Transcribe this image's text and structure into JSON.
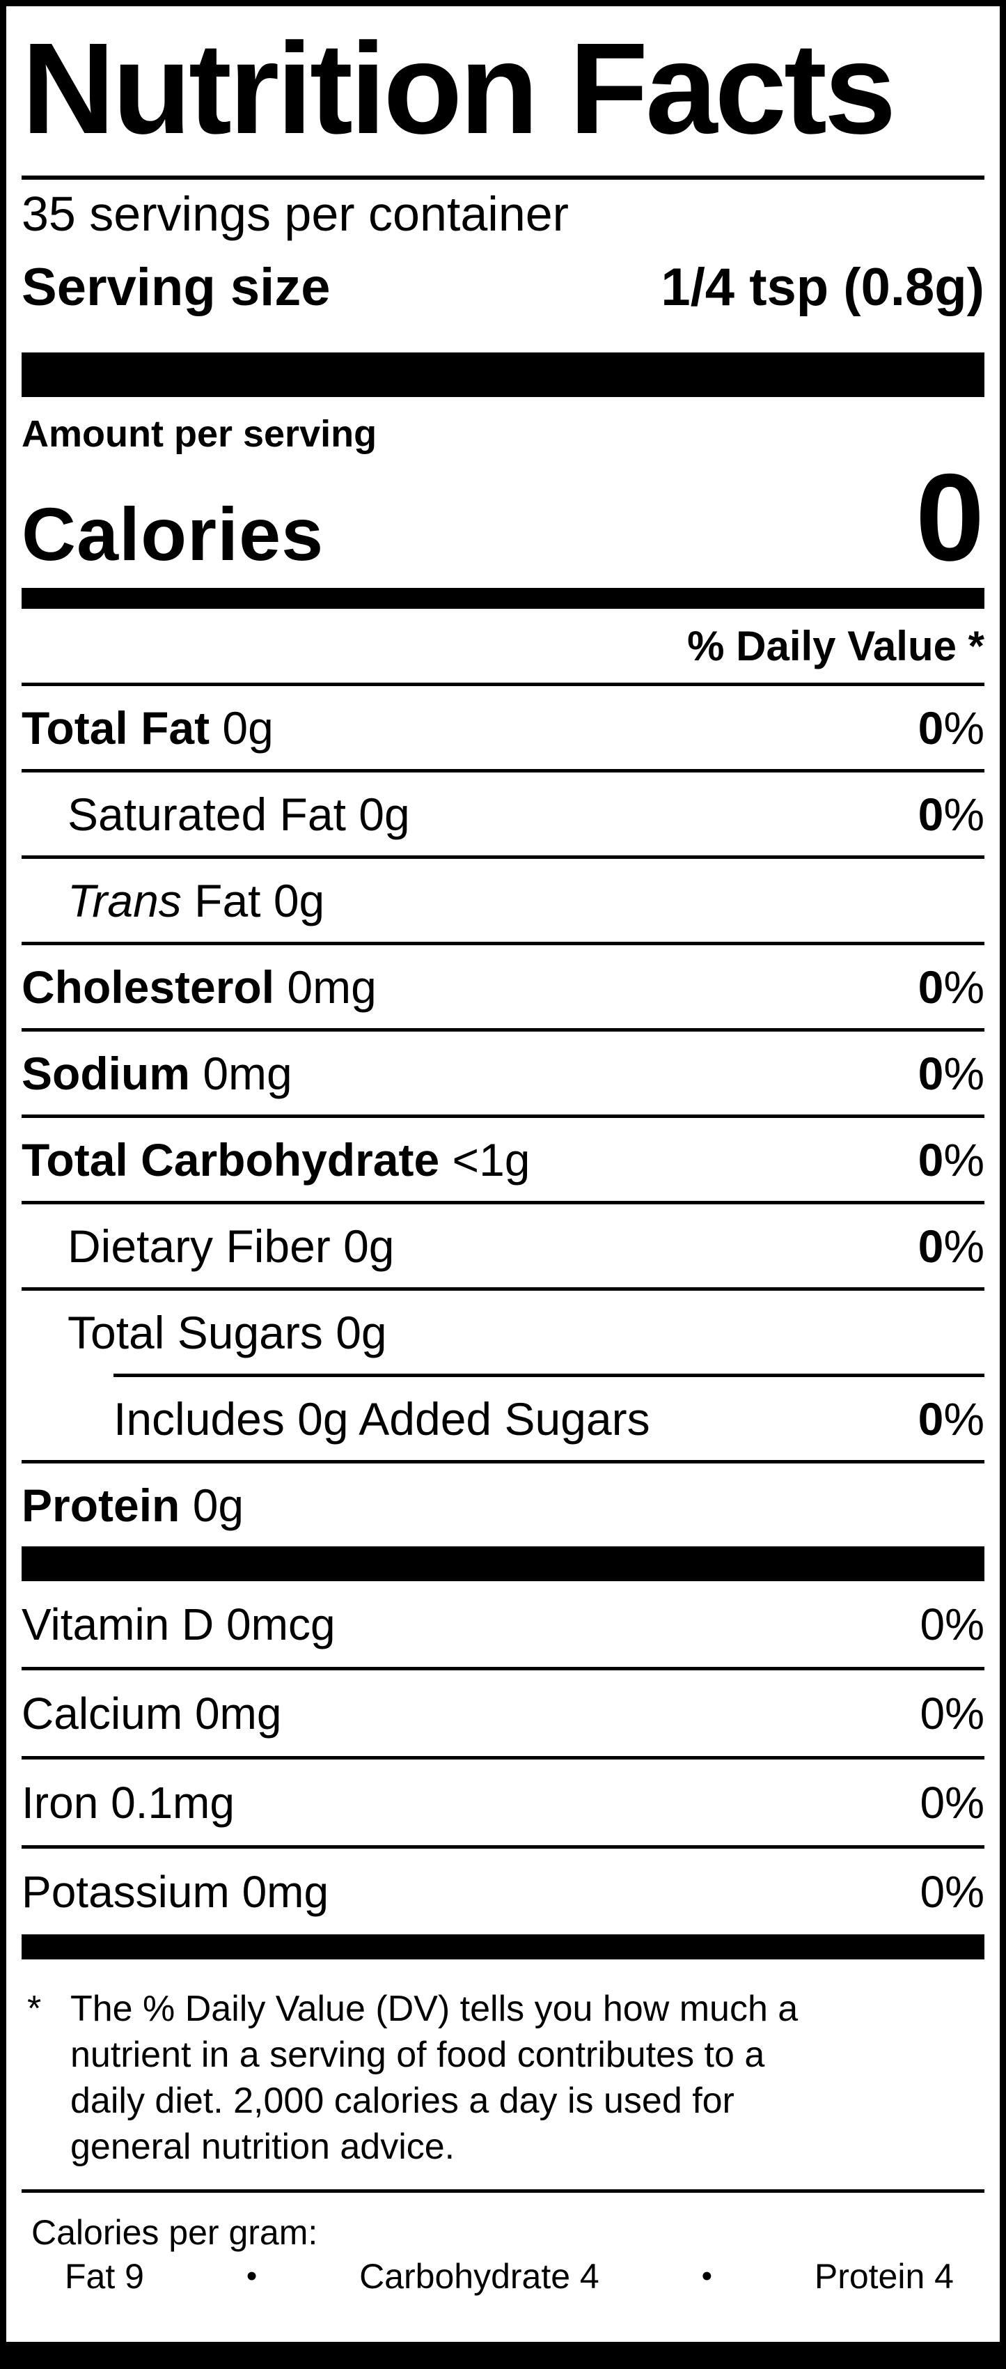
{
  "title": "Nutrition Facts",
  "servings_per_container": "35 servings per container",
  "serving_size": {
    "label": "Serving size",
    "value": "1/4 tsp (0.8g)"
  },
  "amount_per_serving": "Amount per serving",
  "calories": {
    "label": "Calories",
    "value": "0"
  },
  "daily_value_header": "% Daily Value *",
  "percent_sign": "%",
  "nutrients": [
    {
      "bold": "Total Fat",
      "text": " 0g",
      "dv": "0"
    },
    {
      "text": "Saturated Fat 0g",
      "dv": "0"
    },
    {
      "italic": "Trans",
      "text": " Fat 0g"
    },
    {
      "bold": "Cholesterol",
      "text": " 0mg",
      "dv": "0"
    },
    {
      "bold": "Sodium",
      "text": " 0mg",
      "dv": "0"
    },
    {
      "bold": "Total Carbohydrate",
      "text": " <1g",
      "dv": "0"
    },
    {
      "text": "Dietary Fiber 0g",
      "dv": "0"
    },
    {
      "text": "Total Sugars 0g"
    },
    {
      "text": "Includes 0g Added Sugars",
      "dv": "0"
    },
    {
      "bold": "Protein",
      "text": " 0g"
    }
  ],
  "vitamins": [
    {
      "text": "Vitamin D 0mcg",
      "dv": "0"
    },
    {
      "text": "Calcium 0mg",
      "dv": "0"
    },
    {
      "text": "Iron 0.1mg",
      "dv": "0"
    },
    {
      "text": "Potassium 0mg",
      "dv": "0"
    }
  ],
  "footnote": {
    "marker": "*",
    "lines": [
      "The % Daily Value (DV) tells you how much a",
      "nutrient in a serving of food contributes to a",
      "daily diet. 2,000 calories a day is used for",
      "general nutrition advice."
    ]
  },
  "calories_per_gram": {
    "label": "Calories per gram:",
    "fat": "Fat 9",
    "bullet": "•",
    "carbohydrate": "Carbohydrate 4",
    "protein": "Protein 4"
  }
}
